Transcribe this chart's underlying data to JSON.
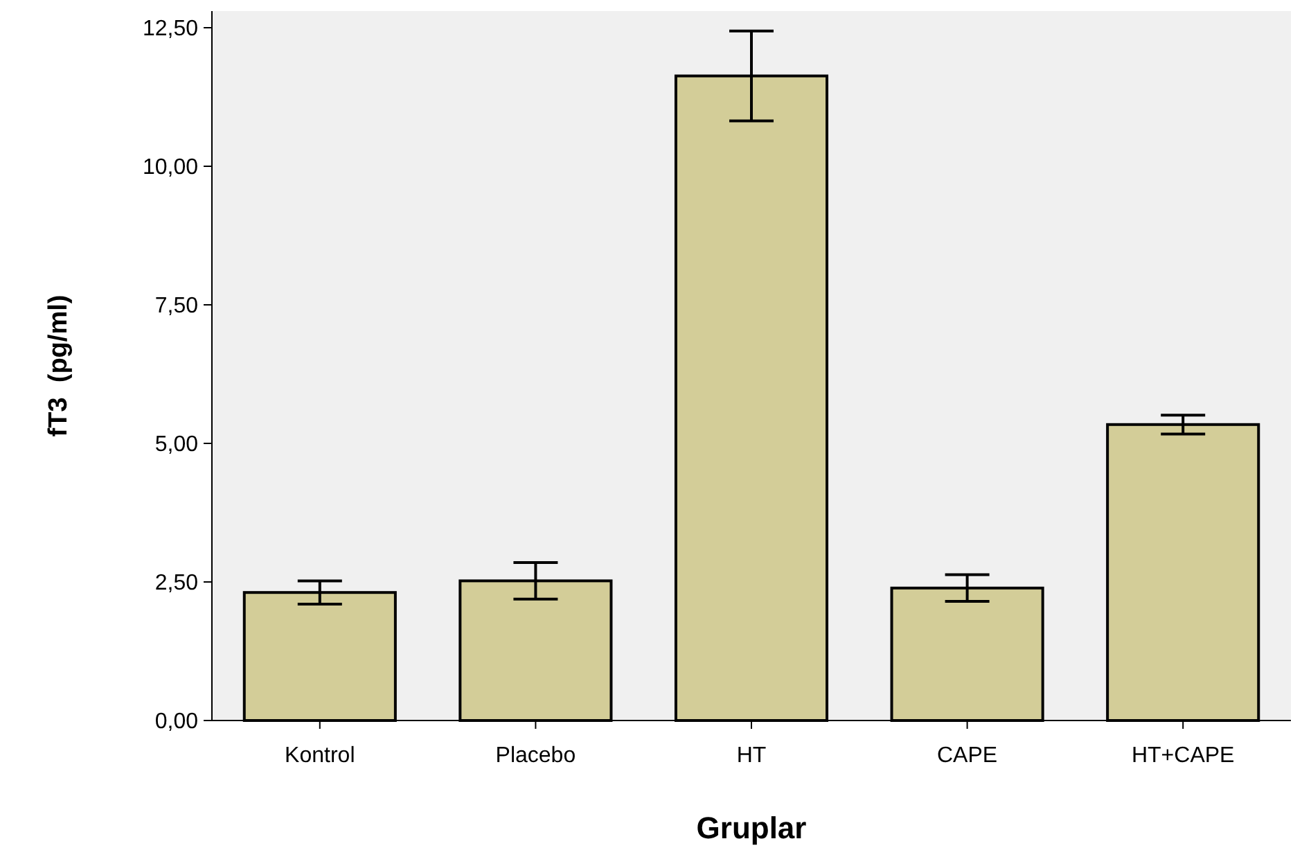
{
  "chart_data": {
    "type": "bar",
    "xlabel": "Gruplar",
    "ylabel": "fT3  (pg/ml)",
    "categories": [
      "Kontrol",
      "Placebo",
      "HT",
      "CAPE",
      "HT+CAPE"
    ],
    "values": [
      2.31,
      2.52,
      11.63,
      2.39,
      5.34
    ],
    "errors": [
      0.21,
      0.33,
      0.81,
      0.24,
      0.17
    ],
    "color": "#d3cd98",
    "ylim": [
      0,
      12.8
    ],
    "yticks": [
      {
        "value": 0,
        "label": "0,00"
      },
      {
        "value": 2.5,
        "label": "2,50"
      },
      {
        "value": 5,
        "label": "5,00"
      },
      {
        "value": 7.5,
        "label": "7,50"
      },
      {
        "value": 10,
        "label": "10,00"
      },
      {
        "value": 12.5,
        "label": "12,50"
      }
    ],
    "grid": false
  }
}
